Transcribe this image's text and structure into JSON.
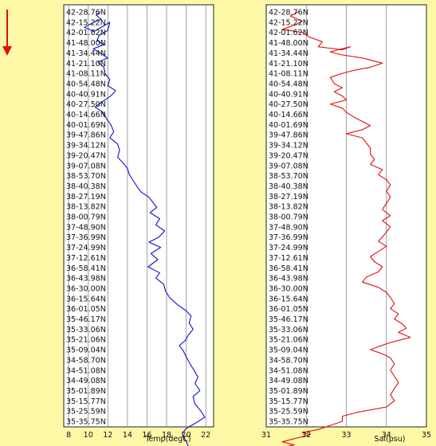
{
  "chart_data": [
    {
      "type": "line",
      "name": "temperature-profile",
      "xlabel": "Temp(degC)",
      "ylabel": "",
      "xlim": [
        7.5,
        22.8
      ],
      "x_ticks": [
        "8",
        "10",
        "12",
        "14",
        "16",
        "18",
        "20",
        "22"
      ],
      "x_tick_values": [
        8,
        10,
        12,
        14,
        16,
        18,
        20,
        22
      ],
      "grid": true,
      "line_color": "#1010d0",
      "series": [
        {
          "name": "",
          "points": [
            [
              11.2,
              0
            ],
            [
              10.8,
              0.3
            ],
            [
              11.3,
              0.7
            ],
            [
              10.4,
              1.1
            ],
            [
              9.6,
              1.5
            ],
            [
              10.6,
              1.9
            ],
            [
              11.5,
              1.4
            ],
            [
              12.2,
              1.0
            ],
            [
              12.0,
              1.8
            ],
            [
              11.1,
              2.3
            ],
            [
              10.9,
              2.8
            ],
            [
              11.6,
              3.2
            ],
            [
              10.5,
              3.6
            ],
            [
              11.2,
              4.0
            ],
            [
              12.0,
              4.5
            ],
            [
              11.0,
              4.9
            ],
            [
              11.6,
              5.4
            ],
            [
              11.7,
              6.0
            ],
            [
              12.2,
              6.6
            ],
            [
              12.0,
              7.2
            ],
            [
              12.8,
              7.7
            ],
            [
              12.3,
              8.2
            ],
            [
              11.4,
              8.8
            ],
            [
              10.7,
              9.3
            ],
            [
              11.5,
              9.8
            ],
            [
              11.9,
              10.5
            ],
            [
              12.3,
              11.0
            ],
            [
              12.6,
              11.7
            ],
            [
              12.2,
              12.3
            ],
            [
              13.0,
              12.9
            ],
            [
              13.2,
              13.5
            ],
            [
              13.0,
              14.2
            ],
            [
              13.6,
              14.8
            ],
            [
              14.0,
              15.3
            ],
            [
              14.2,
              15.9
            ],
            [
              14.6,
              16.5
            ],
            [
              15.0,
              17.1
            ],
            [
              15.4,
              17.6
            ],
            [
              16.2,
              18.1
            ],
            [
              16.6,
              18.6
            ],
            [
              17.0,
              19.1
            ],
            [
              16.3,
              19.6
            ],
            [
              17.3,
              20.2
            ],
            [
              16.9,
              20.8
            ],
            [
              17.8,
              21.4
            ],
            [
              17.2,
              22.0
            ],
            [
              16.2,
              22.5
            ],
            [
              17.4,
              23.0
            ],
            [
              16.4,
              23.6
            ],
            [
              17.1,
              24.2
            ],
            [
              16.1,
              24.9
            ],
            [
              17.3,
              25.5
            ],
            [
              16.9,
              26.0
            ],
            [
              17.7,
              26.6
            ],
            [
              17.9,
              27.3
            ],
            [
              18.3,
              27.9
            ],
            [
              19.1,
              28.6
            ],
            [
              20.0,
              29.2
            ],
            [
              20.5,
              29.7
            ],
            [
              20.3,
              30.4
            ],
            [
              20.7,
              31.0
            ],
            [
              20.2,
              31.6
            ],
            [
              19.9,
              32.1
            ],
            [
              19.3,
              32.6
            ],
            [
              19.7,
              33.1
            ],
            [
              20.0,
              33.7
            ],
            [
              20.4,
              34.4
            ],
            [
              20.8,
              35.0
            ],
            [
              21.2,
              35.7
            ],
            [
              20.9,
              36.3
            ],
            [
              21.4,
              37.0
            ],
            [
              20.7,
              37.6
            ],
            [
              20.9,
              38.3
            ],
            [
              21.5,
              39.0
            ],
            [
              21.9,
              39.6
            ],
            [
              20.9,
              40.2
            ],
            [
              20.0,
              40.7
            ],
            [
              19.6,
              41.2
            ],
            [
              19.9,
              41.8
            ],
            [
              20.2,
              42.4
            ],
            [
              20.5,
              43.0
            ],
            [
              20.3,
              43.6
            ]
          ]
        }
      ]
    },
    {
      "type": "line",
      "name": "salinity-profile",
      "xlabel": "Sal(psu)",
      "ylabel": "",
      "xlim": [
        31,
        35
      ],
      "x_ticks": [
        "31",
        "32",
        "33",
        "34",
        "35"
      ],
      "x_tick_values": [
        31,
        32,
        33,
        34,
        35
      ],
      "grid": true,
      "line_color": "#e01010",
      "series": [
        {
          "name": "",
          "points": [
            [
              31.8,
              0
            ],
            [
              31.6,
              0.4
            ],
            [
              31.9,
              0.9
            ],
            [
              31.7,
              1.3
            ],
            [
              31.4,
              1.7
            ],
            [
              31.9,
              2.0
            ],
            [
              32.1,
              2.5
            ],
            [
              32.4,
              2.9
            ],
            [
              32.3,
              3.4
            ],
            [
              32.9,
              3.7
            ],
            [
              33.1,
              3.4
            ],
            [
              32.6,
              3.9
            ],
            [
              32.9,
              4.2
            ],
            [
              33.4,
              4.5
            ],
            [
              33.9,
              5.0
            ],
            [
              33.6,
              5.4
            ],
            [
              33.2,
              5.7
            ],
            [
              32.9,
              6.0
            ],
            [
              32.6,
              6.4
            ],
            [
              32.7,
              7.0
            ],
            [
              32.9,
              7.4
            ],
            [
              32.7,
              7.8
            ],
            [
              32.9,
              8.2
            ],
            [
              33.0,
              8.6
            ],
            [
              32.6,
              9.0
            ],
            [
              32.9,
              9.4
            ],
            [
              33.0,
              9.8
            ],
            [
              33.2,
              10.3
            ],
            [
              33.4,
              10.7
            ],
            [
              33.6,
              11.1
            ],
            [
              33.4,
              11.5
            ],
            [
              33.0,
              11.9
            ],
            [
              33.4,
              12.3
            ],
            [
              33.5,
              12.8
            ],
            [
              33.6,
              13.3
            ],
            [
              33.6,
              13.9
            ],
            [
              33.7,
              14.4
            ],
            [
              33.6,
              14.9
            ],
            [
              33.9,
              15.4
            ],
            [
              33.8,
              15.9
            ],
            [
              34.0,
              16.4
            ],
            [
              34.1,
              16.9
            ],
            [
              34.0,
              17.5
            ],
            [
              34.1,
              18.1
            ],
            [
              34.0,
              18.7
            ],
            [
              33.9,
              19.3
            ],
            [
              34.1,
              19.9
            ],
            [
              33.9,
              20.4
            ],
            [
              34.1,
              21.0
            ],
            [
              34.0,
              21.5
            ],
            [
              33.9,
              22.0
            ],
            [
              33.8,
              22.4
            ],
            [
              34.0,
              22.9
            ],
            [
              33.8,
              23.4
            ],
            [
              33.6,
              23.9
            ],
            [
              33.7,
              24.4
            ],
            [
              33.9,
              24.9
            ],
            [
              33.8,
              25.4
            ],
            [
              33.5,
              25.9
            ],
            [
              33.4,
              26.4
            ],
            [
              33.8,
              26.9
            ],
            [
              34.0,
              27.4
            ],
            [
              34.1,
              27.9
            ],
            [
              34.2,
              28.5
            ],
            [
              34.1,
              29.0
            ],
            [
              34.3,
              29.5
            ],
            [
              34.2,
              30.0
            ],
            [
              34.4,
              30.5
            ],
            [
              34.5,
              30.9
            ],
            [
              34.3,
              31.3
            ],
            [
              34.6,
              31.8
            ],
            [
              34.1,
              32.3
            ],
            [
              33.8,
              32.7
            ],
            [
              33.6,
              33.0
            ],
            [
              33.9,
              33.4
            ],
            [
              34.1,
              33.8
            ],
            [
              34.2,
              34.4
            ],
            [
              34.1,
              35.0
            ],
            [
              34.2,
              35.6
            ],
            [
              34.3,
              36.2
            ],
            [
              34.2,
              36.8
            ],
            [
              34.1,
              37.4
            ],
            [
              34.2,
              38.0
            ],
            [
              34.0,
              38.6
            ],
            [
              33.3,
              39.1
            ],
            [
              32.9,
              39.5
            ],
            [
              32.9,
              40.0
            ],
            [
              32.6,
              40.4
            ],
            [
              32.3,
              40.8
            ],
            [
              31.9,
              41.1
            ],
            [
              32.1,
              41.3
            ],
            [
              31.7,
              41.7
            ],
            [
              31.4,
              42.0
            ],
            [
              31.7,
              42.3
            ],
            [
              31.2,
              42.7
            ],
            [
              31.4,
              43.0
            ],
            [
              31.1,
              43.6
            ]
          ]
        }
      ]
    }
  ],
  "latitude_labels": [
    "42-28.76N",
    "42-15.22N",
    "42-01.62N",
    "41-48.00N",
    "41-34.44N",
    "41-21.10N",
    "41-08.11N",
    "40-54.48N",
    "40-40.91N",
    "40-27.50N",
    "40-14.66N",
    "40-01.69N",
    "39-47.86N",
    "39-34.12N",
    "39-20.47N",
    "39-07.08N",
    "38-53.70N",
    "38-40.38N",
    "38-27.19N",
    "38-13.82N",
    "38-00.79N",
    "37-48.90N",
    "37-36.99N",
    "37-24.99N",
    "37-12.61N",
    "36-58.41N",
    "36-43.98N",
    "36-30.00N",
    "36-15.64N",
    "36-01.05N",
    "35-46.17N",
    "35-33.06N",
    "35-21.06N",
    "35-09.04N",
    "34-58.70N",
    "34-51.08N",
    "34-49.08N",
    "35-01.89N",
    "35-15.77N",
    "35-25.59N",
    "35-35.75N"
  ],
  "direction_arrow_color": "#dd1111",
  "background_color": "#fcf8a6",
  "grid_color": "#888888"
}
